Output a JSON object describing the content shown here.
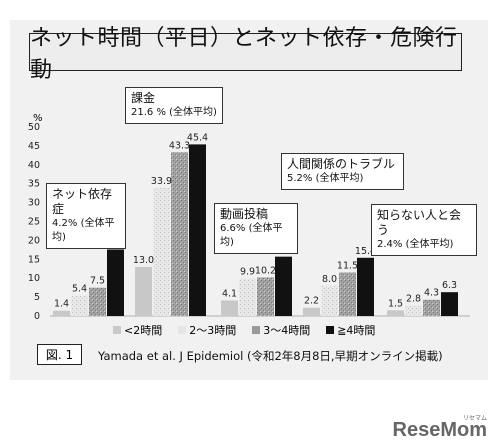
{
  "title": "ネット時間（平日）とネット依存・危険行動",
  "unit_label": "%",
  "figure_label": "図. 1",
  "citation": "Yamada et al. J Epidemiol (令和2年8月8日,早期オンライン掲載)",
  "logo": {
    "text": "ReseMom",
    "sub": "リセマム"
  },
  "callouts": [
    {
      "heading": "ネット依存症",
      "value": "4.2% (全体平均)"
    },
    {
      "heading": "課金",
      "value": "21.6 % (全体平均)"
    },
    {
      "heading": "動画投稿",
      "value": "6.6% (全体平均)"
    },
    {
      "heading": "人間関係のトラブル",
      "value": "5.2% (全体平均)"
    },
    {
      "heading": "知らない人と会う",
      "value": "2.4% (全体平均)"
    }
  ],
  "chart_data": {
    "type": "bar",
    "title": "ネット時間（平日）とネット依存・危険行動",
    "ylabel": "%",
    "ylim": [
      0,
      50
    ],
    "yticks": [
      0,
      5,
      10,
      15,
      20,
      25,
      30,
      35,
      40,
      45,
      50
    ],
    "categories": [
      "ネット依存症",
      "課金",
      "動画投稿",
      "人間関係のトラブル",
      "知らない人と会う"
    ],
    "series": [
      {
        "name": "<2時間",
        "color": "#c8c8c8",
        "values": [
          1.4,
          13.0,
          4.1,
          2.2,
          1.5
        ]
      },
      {
        "name": "2〜3時間",
        "color": "#e6e6e6",
        "values": [
          5.4,
          33.9,
          9.9,
          8.0,
          2.8
        ]
      },
      {
        "name": "3〜4時間",
        "color": "#9a9a9a",
        "values": [
          7.5,
          43.3,
          10.2,
          11.5,
          4.3
        ]
      },
      {
        "name": "≧4時間",
        "color": "#111111",
        "values": [
          17.6,
          45.4,
          15.7,
          15.4,
          6.3
        ]
      }
    ],
    "legend_position": "bottom",
    "grid": false
  }
}
